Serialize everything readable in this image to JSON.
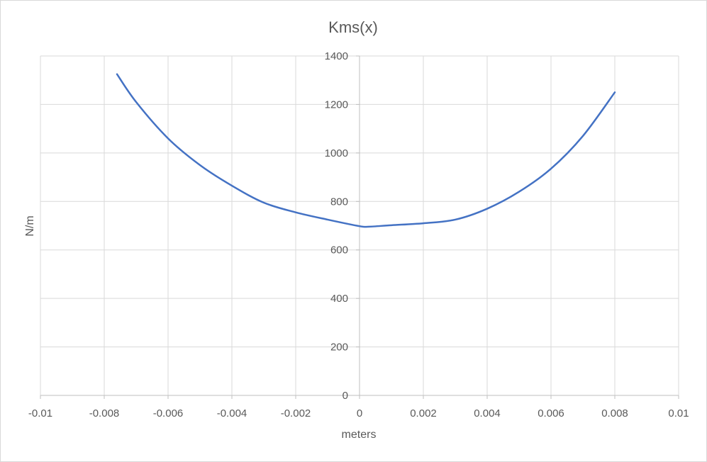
{
  "chart_data": {
    "type": "scatter",
    "title": "Kms(x)",
    "xlabel": "meters",
    "ylabel": "N/m",
    "xlim": [
      -0.01,
      0.01
    ],
    "ylim": [
      0,
      1400
    ],
    "x_ticks": [
      -0.01,
      -0.008,
      -0.006,
      -0.004,
      -0.002,
      0,
      0.002,
      0.004,
      0.006,
      0.008,
      0.01
    ],
    "y_ticks": [
      0,
      200,
      400,
      600,
      800,
      1000,
      1200,
      1400
    ],
    "x_tick_labels": [
      "-0.01",
      "-0.008",
      "-0.006",
      "-0.004",
      "-0.002",
      "0",
      "0.002",
      "0.004",
      "0.006",
      "0.008",
      "0.01"
    ],
    "y_tick_labels": [
      "0",
      "200",
      "400",
      "600",
      "800",
      "1000",
      "1200",
      "1400"
    ],
    "grid": true,
    "series": [
      {
        "style": "smooth-line",
        "color": "#4472c4",
        "x": [
          -0.0076,
          -0.007,
          -0.006,
          -0.005,
          -0.004,
          -0.003,
          -0.002,
          -0.001,
          0,
          0.0003,
          0.001,
          0.002,
          0.003,
          0.004,
          0.005,
          0.006,
          0.007,
          0.008
        ],
        "y": [
          1325,
          1210,
          1060,
          950,
          865,
          795,
          755,
          725,
          698,
          696,
          702,
          710,
          725,
          770,
          840,
          935,
          1070,
          1250
        ]
      }
    ]
  }
}
